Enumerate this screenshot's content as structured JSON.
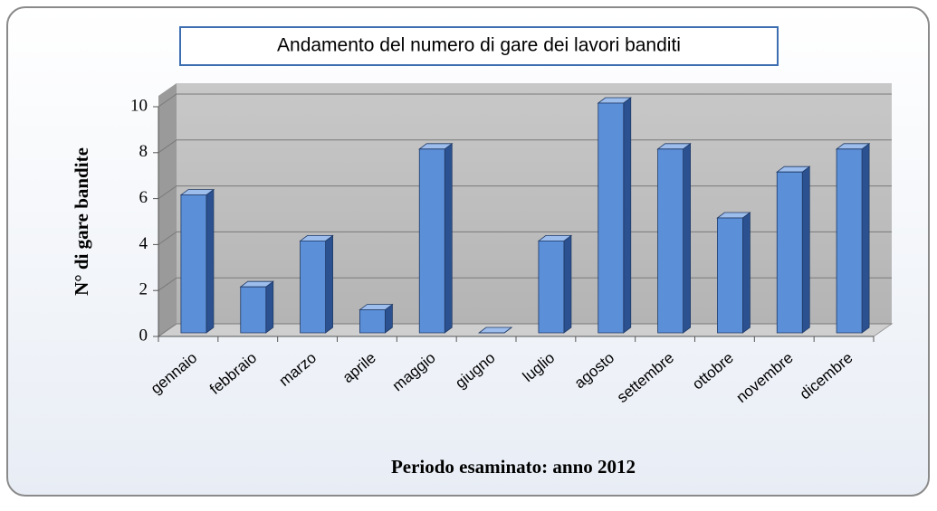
{
  "chart_data": {
    "type": "bar3d",
    "title": "Andamento del numero di gare dei lavori banditi",
    "categories": [
      "gennaio",
      "febbraio",
      "marzo",
      "aprile",
      "maggio",
      "giugno",
      "luglio",
      "agosto",
      "settembre",
      "ottobre",
      "novembre",
      "dicembre"
    ],
    "values": [
      6,
      2,
      4,
      1,
      8,
      0,
      4,
      10,
      8,
      5,
      7,
      8
    ],
    "color": "#5b8fd8",
    "ylim": [
      0,
      10
    ],
    "yticks": [
      0,
      2,
      4,
      6,
      8,
      10
    ],
    "grid": true,
    "ylabel": "N° di gare bandite",
    "xlabel": "Periodo esaminato: anno 2012"
  }
}
